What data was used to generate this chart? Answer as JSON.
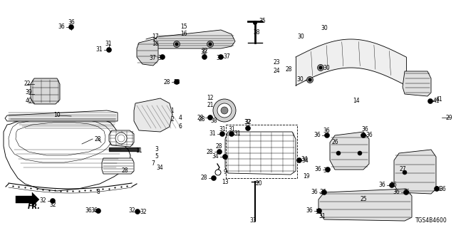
{
  "bg_color": "#ffffff",
  "diagram_id": "TGS4B4600",
  "lw": 0.6
}
